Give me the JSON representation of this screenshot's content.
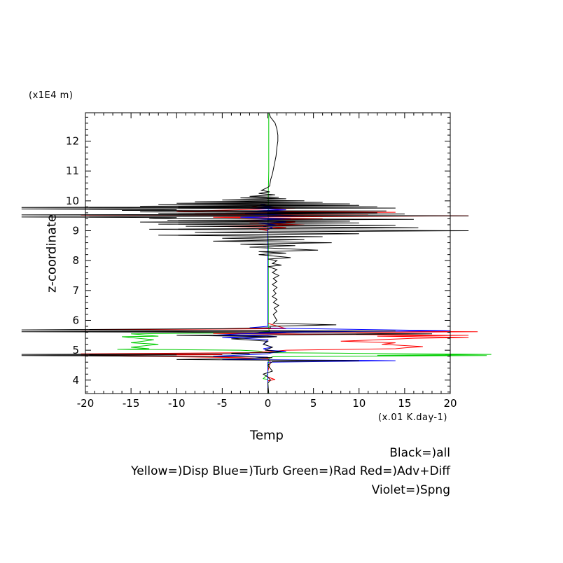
{
  "chart_data": {
    "type": "line",
    "title": "",
    "xlabel": "Temp",
    "ylabel": "z-coordinate",
    "x_unit": "(x.01 K.day-1)",
    "y_unit": "(x1E4 m)",
    "xlim": [
      -20,
      20
    ],
    "ylim": [
      3.55,
      12.95
    ],
    "xticks": [
      -20,
      -15,
      -10,
      -5,
      0,
      5,
      10,
      15,
      20
    ],
    "yticks": [
      4,
      5,
      6,
      7,
      8,
      9,
      10,
      11,
      12
    ],
    "grid": false,
    "legend_lines": [
      "Black=)all",
      "Yellow=)Disp Blue=)Turb Green=)Rad Red=)Adv+Diff",
      "Violet=)Spng"
    ],
    "colors": {
      "all": "#000000",
      "Turb": "#0000ff",
      "Rad": "#00cc00",
      "AdvDiff": "#ff0000"
    },
    "series": [
      {
        "name": "Rad",
        "color": "#00cc00",
        "points": [
          [
            0.1,
            12.95
          ],
          [
            0.1,
            11.0
          ],
          [
            0.05,
            10.3
          ],
          [
            0.05,
            9.9
          ],
          [
            0.05,
            9.5
          ],
          [
            0.0,
            9.0
          ],
          [
            0.05,
            8.5
          ],
          [
            0.05,
            8.0
          ],
          [
            0.05,
            7.0
          ],
          [
            0.05,
            6.2
          ],
          [
            0.05,
            5.75
          ],
          [
            0.2,
            5.62
          ],
          [
            -2.0,
            5.58
          ],
          [
            -15.0,
            5.55
          ],
          [
            -12.0,
            5.47
          ],
          [
            -16.0,
            5.45
          ],
          [
            -12.5,
            5.35
          ],
          [
            -15.0,
            5.25
          ],
          [
            -12.0,
            5.2
          ],
          [
            -15.0,
            5.1
          ],
          [
            -13.0,
            5.05
          ],
          [
            -16.5,
            5.03
          ],
          [
            -10.0,
            5.02
          ],
          [
            -3.0,
            5.0
          ],
          [
            -1.0,
            4.97
          ],
          [
            0.0,
            4.92
          ],
          [
            8.0,
            4.9
          ],
          [
            24.5,
            4.86
          ],
          [
            12.0,
            4.83
          ],
          [
            24.0,
            4.82
          ],
          [
            8.0,
            4.8
          ],
          [
            0.5,
            4.78
          ],
          [
            0.05,
            4.7
          ],
          [
            0.05,
            4.5
          ],
          [
            0.0,
            4.2
          ],
          [
            -0.5,
            4.05
          ],
          [
            0.0,
            4.02
          ],
          [
            0.05,
            3.55
          ]
        ]
      },
      {
        "name": "Adv+Diff",
        "color": "#ff0000",
        "points": [
          [
            0.0,
            9.9
          ],
          [
            -2.0,
            9.8
          ],
          [
            3.0,
            9.75
          ],
          [
            -10.0,
            9.65
          ],
          [
            14.0,
            9.62
          ],
          [
            -8.0,
            9.58
          ],
          [
            11.0,
            9.55
          ],
          [
            -20.5,
            9.52
          ],
          [
            22.0,
            9.5
          ],
          [
            -6.0,
            9.45
          ],
          [
            6.0,
            9.4
          ],
          [
            -4.0,
            9.35
          ],
          [
            3.0,
            9.3
          ],
          [
            -2.0,
            9.25
          ],
          [
            4.0,
            9.2
          ],
          [
            -6.0,
            9.15
          ],
          [
            2.0,
            9.1
          ],
          [
            -1.0,
            9.05
          ],
          [
            0.0,
            9.0
          ],
          [
            0.0,
            5.9
          ],
          [
            2.0,
            5.72
          ],
          [
            -20.5,
            5.68
          ],
          [
            0.0,
            5.65
          ],
          [
            23.0,
            5.62
          ],
          [
            5.0,
            5.58
          ],
          [
            -6.0,
            5.56
          ],
          [
            22.0,
            5.5
          ],
          [
            12.0,
            5.47
          ],
          [
            22.0,
            5.43
          ],
          [
            16.0,
            5.4
          ],
          [
            12.0,
            5.35
          ],
          [
            8.0,
            5.3
          ],
          [
            14.0,
            5.25
          ],
          [
            12.5,
            5.2
          ],
          [
            17.0,
            5.12
          ],
          [
            15.0,
            5.08
          ],
          [
            14.0,
            5.05
          ],
          [
            2.0,
            5.0
          ],
          [
            0.0,
            4.95
          ],
          [
            -2.0,
            4.92
          ],
          [
            -20.5,
            4.88
          ],
          [
            -5.0,
            4.85
          ],
          [
            -20.5,
            4.82
          ],
          [
            -10.0,
            4.78
          ],
          [
            -3.0,
            4.75
          ],
          [
            0.0,
            4.72
          ],
          [
            0.3,
            4.6
          ],
          [
            0.0,
            4.3
          ],
          [
            0.0,
            4.1
          ],
          [
            0.8,
            4.02
          ],
          [
            0.0,
            3.98
          ],
          [
            0.0,
            3.55
          ]
        ]
      },
      {
        "name": "Turb",
        "color": "#0000ff",
        "points": [
          [
            0.0,
            9.9
          ],
          [
            -1.0,
            9.85
          ],
          [
            1.0,
            9.8
          ],
          [
            -2.0,
            9.75
          ],
          [
            2.0,
            9.7
          ],
          [
            -3.0,
            9.65
          ],
          [
            3.0,
            9.6
          ],
          [
            -2.5,
            9.55
          ],
          [
            4.0,
            9.5
          ],
          [
            -3.0,
            9.45
          ],
          [
            2.5,
            9.4
          ],
          [
            -2.0,
            9.35
          ],
          [
            2.0,
            9.3
          ],
          [
            -1.0,
            9.25
          ],
          [
            1.0,
            9.2
          ],
          [
            -0.5,
            9.15
          ],
          [
            0.5,
            9.1
          ],
          [
            0.0,
            9.05
          ],
          [
            0.0,
            5.8
          ],
          [
            -2.0,
            5.75
          ],
          [
            20.0,
            5.65
          ],
          [
            -1.0,
            5.6
          ],
          [
            2.0,
            5.58
          ],
          [
            -3.0,
            5.55
          ],
          [
            -6.0,
            5.5
          ],
          [
            0.0,
            5.48
          ],
          [
            1.0,
            5.45
          ],
          [
            -5.0,
            5.43
          ],
          [
            0.0,
            5.35
          ],
          [
            -0.5,
            5.2
          ],
          [
            0.5,
            5.1
          ],
          [
            -0.5,
            5.05
          ],
          [
            0.0,
            5.0
          ],
          [
            1.0,
            4.98
          ],
          [
            2.0,
            4.96
          ],
          [
            0.5,
            4.92
          ],
          [
            0.0,
            4.88
          ],
          [
            -2.0,
            4.85
          ],
          [
            -6.0,
            4.8
          ],
          [
            0.0,
            4.77
          ],
          [
            -2.0,
            4.72
          ],
          [
            -5.0,
            4.7
          ],
          [
            0.0,
            4.68
          ],
          [
            10.0,
            4.66
          ],
          [
            14.0,
            4.65
          ],
          [
            9.0,
            4.63
          ],
          [
            0.0,
            4.6
          ],
          [
            0.0,
            4.3
          ],
          [
            0.0,
            3.55
          ]
        ]
      },
      {
        "name": "all",
        "color": "#000000",
        "points": [
          [
            0.1,
            12.95
          ],
          [
            0.3,
            12.8
          ],
          [
            0.8,
            12.6
          ],
          [
            1.0,
            12.4
          ],
          [
            1.1,
            12.2
          ],
          [
            1.1,
            12.0
          ],
          [
            1.0,
            11.8
          ],
          [
            0.9,
            11.5
          ],
          [
            0.7,
            11.2
          ],
          [
            0.5,
            10.9
          ],
          [
            0.3,
            10.7
          ],
          [
            0.2,
            10.5
          ],
          [
            0.0,
            10.45
          ],
          [
            -0.7,
            10.35
          ],
          [
            0.2,
            10.3
          ],
          [
            -1.0,
            10.25
          ],
          [
            0.8,
            10.2
          ],
          [
            -2.0,
            10.15
          ],
          [
            1.2,
            10.12
          ],
          [
            -3.0,
            10.1
          ],
          [
            2.0,
            10.07
          ],
          [
            -5.0,
            10.03
          ],
          [
            4.0,
            10.0
          ],
          [
            -8.0,
            9.97
          ],
          [
            6.0,
            9.95
          ],
          [
            -10.0,
            9.92
          ],
          [
            9.0,
            9.9
          ],
          [
            -12.0,
            9.87
          ],
          [
            10.0,
            9.85
          ],
          [
            -14.0,
            9.82
          ],
          [
            12.0,
            9.8
          ],
          [
            -27.0,
            9.78
          ],
          [
            14.0,
            9.76
          ],
          [
            -27.0,
            9.73
          ],
          [
            -10.0,
            9.7
          ],
          [
            -16.0,
            9.68
          ],
          [
            13.0,
            9.66
          ],
          [
            -14.0,
            9.63
          ],
          [
            12.0,
            9.6
          ],
          [
            -12.0,
            9.58
          ],
          [
            15.0,
            9.56
          ],
          [
            -27.0,
            9.53
          ],
          [
            22.0,
            9.5
          ],
          [
            -27.0,
            9.46
          ],
          [
            -10.0,
            9.44
          ],
          [
            -13.0,
            9.41
          ],
          [
            16.0,
            9.38
          ],
          [
            -11.0,
            9.35
          ],
          [
            9.0,
            9.32
          ],
          [
            -14.0,
            9.29
          ],
          [
            10.0,
            9.26
          ],
          [
            -12.0,
            9.22
          ],
          [
            14.0,
            9.18
          ],
          [
            -9.0,
            9.15
          ],
          [
            16.5,
            9.1
          ],
          [
            -13.0,
            9.05
          ],
          [
            22.0,
            9.0
          ],
          [
            -8.0,
            8.95
          ],
          [
            10.0,
            8.9
          ],
          [
            -12.0,
            8.85
          ],
          [
            6.0,
            8.8
          ],
          [
            -5.0,
            8.75
          ],
          [
            4.0,
            8.7
          ],
          [
            -6.0,
            8.65
          ],
          [
            7.0,
            8.6
          ],
          [
            -3.0,
            8.55
          ],
          [
            3.0,
            8.5
          ],
          [
            -2.0,
            8.45
          ],
          [
            5.5,
            8.35
          ],
          [
            -1.0,
            8.3
          ],
          [
            2.0,
            8.25
          ],
          [
            -1.0,
            8.2
          ],
          [
            2.5,
            8.1
          ],
          [
            0.0,
            8.05
          ],
          [
            1.0,
            8.0
          ],
          [
            0.5,
            7.9
          ],
          [
            1.5,
            7.85
          ],
          [
            0.0,
            7.8
          ],
          [
            1.0,
            7.7
          ],
          [
            0.5,
            7.6
          ],
          [
            1.2,
            7.5
          ],
          [
            0.6,
            7.4
          ],
          [
            1.0,
            7.3
          ],
          [
            0.5,
            7.2
          ],
          [
            1.0,
            7.1
          ],
          [
            0.6,
            7.0
          ],
          [
            0.9,
            6.9
          ],
          [
            0.5,
            6.8
          ],
          [
            1.0,
            6.7
          ],
          [
            0.6,
            6.6
          ],
          [
            1.2,
            6.5
          ],
          [
            0.7,
            6.4
          ],
          [
            1.0,
            6.3
          ],
          [
            0.6,
            6.2
          ],
          [
            0.8,
            6.1
          ],
          [
            1.0,
            6.0
          ],
          [
            0.6,
            5.9
          ],
          [
            7.5,
            5.85
          ],
          [
            0.2,
            5.8
          ],
          [
            0.3,
            5.75
          ],
          [
            -5.0,
            5.72
          ],
          [
            -27.0,
            5.68
          ],
          [
            -5.0,
            5.66
          ],
          [
            14.0,
            5.64
          ],
          [
            -27.0,
            5.62
          ],
          [
            -8.0,
            5.6
          ],
          [
            18.0,
            5.55
          ],
          [
            4.0,
            5.52
          ],
          [
            -10.0,
            5.5
          ],
          [
            1.0,
            5.45
          ],
          [
            -4.0,
            5.38
          ],
          [
            0.0,
            5.3
          ],
          [
            -0.5,
            5.2
          ],
          [
            0.5,
            5.1
          ],
          [
            -0.3,
            5.0
          ],
          [
            1.5,
            4.95
          ],
          [
            0.0,
            4.92
          ],
          [
            -4.0,
            4.9
          ],
          [
            -2.0,
            4.88
          ],
          [
            -27.0,
            4.86
          ],
          [
            -10.0,
            4.84
          ],
          [
            -27.0,
            4.82
          ],
          [
            -2.0,
            4.78
          ],
          [
            0.5,
            4.75
          ],
          [
            -2.0,
            4.72
          ],
          [
            -10.0,
            4.69
          ],
          [
            0.0,
            4.67
          ],
          [
            10.0,
            4.65
          ],
          [
            0.5,
            4.62
          ],
          [
            0.0,
            4.5
          ],
          [
            0.5,
            4.3
          ],
          [
            -0.5,
            4.2
          ],
          [
            0.0,
            4.1
          ],
          [
            0.3,
            4.0
          ],
          [
            0.0,
            3.9
          ],
          [
            0.1,
            3.55
          ]
        ]
      }
    ]
  }
}
